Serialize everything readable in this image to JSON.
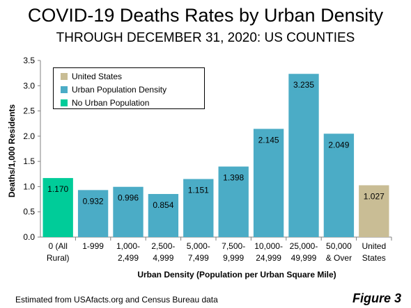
{
  "title": "COVID-19 Deaths Rates by Urban Density",
  "subtitle": "THROUGH DECEMBER 31, 2020: US COUNTIES",
  "source_note": "Estimated from USAfacts.org and Census Bureau data",
  "figure_label": "Figure 3",
  "colors": {
    "urban": "#4bacc6",
    "rural": "#00cc99",
    "us": "#c9bd95",
    "axis": "#808080"
  },
  "chart_data": {
    "type": "bar",
    "title": "COVID-19 Deaths Rates by Urban Density",
    "subtitle": "THROUGH DECEMBER 31, 2020: US COUNTIES",
    "xlabel": "Urban Density (Population per Urban Square Mile)",
    "ylabel": "Deaths/1,000 Residents",
    "ylim": [
      0,
      3.5
    ],
    "yticks": [
      "0.0",
      "0.5",
      "1.0",
      "1.5",
      "2.0",
      "2.5",
      "3.0",
      "3.5"
    ],
    "grid": false,
    "legend_position": "top-left",
    "legend": [
      {
        "label": "United States",
        "color_key": "us"
      },
      {
        "label": "Urban Population Density",
        "color_key": "urban"
      },
      {
        "label": "No Urban Population",
        "color_key": "rural"
      }
    ],
    "categories": [
      [
        "0 (All",
        "Rural)"
      ],
      [
        "1-999"
      ],
      [
        "1,000-",
        "2,499"
      ],
      [
        "2,500-",
        "4,999"
      ],
      [
        "5,000-",
        "7,499"
      ],
      [
        "7,500-",
        "9,999"
      ],
      [
        "10,000-",
        "24,999"
      ],
      [
        "25,000-",
        "49,999"
      ],
      [
        "50,000",
        "& Over"
      ],
      [
        "United",
        "States"
      ]
    ],
    "values": [
      1.17,
      0.932,
      0.996,
      0.854,
      1.151,
      1.398,
      2.145,
      3.235,
      2.049,
      1.027
    ],
    "value_labels": [
      "1.170",
      "0.932",
      "0.996",
      "0.854",
      "1.151",
      "1.398",
      "2.145",
      "3.235",
      "2.049",
      "1.027"
    ],
    "bar_series": [
      "rural",
      "urban",
      "urban",
      "urban",
      "urban",
      "urban",
      "urban",
      "urban",
      "urban",
      "us"
    ]
  }
}
